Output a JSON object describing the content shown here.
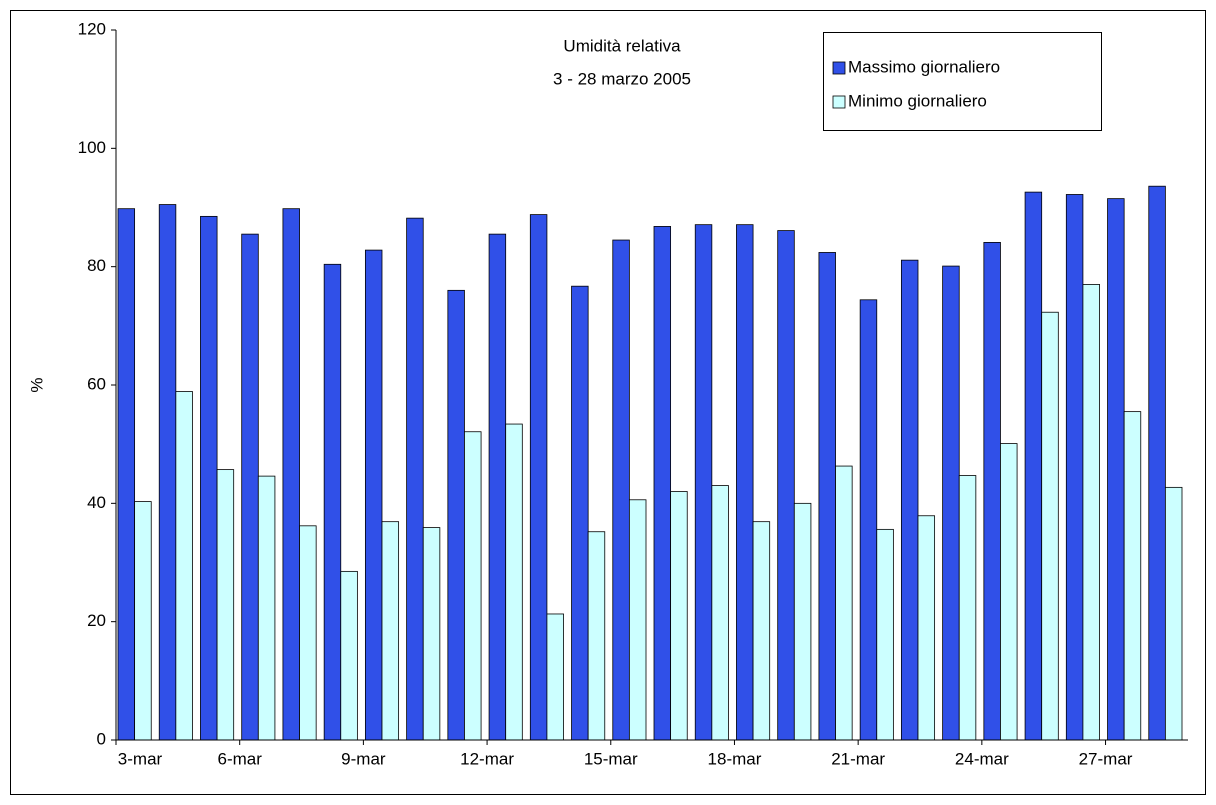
{
  "chart_data": {
    "type": "bar",
    "title": "Umidità relativa",
    "subtitle": "3 - 28 marzo 2005",
    "y_label": "%",
    "categories": [
      "3-mar",
      null,
      null,
      "6-mar",
      null,
      null,
      "9-mar",
      null,
      null,
      "12-mar",
      null,
      null,
      "15-mar",
      null,
      null,
      "18-mar",
      null,
      null,
      "21-mar",
      null,
      null,
      "24-mar",
      null,
      null,
      "27-mar",
      null
    ],
    "series": [
      {
        "name": "Massimo giornaliero",
        "color": "#3050e8",
        "values": [
          89.8,
          90.5,
          88.5,
          85.5,
          89.8,
          80.4,
          82.8,
          88.2,
          76.0,
          85.5,
          88.8,
          76.7,
          84.5,
          86.8,
          87.1,
          87.1,
          86.1,
          82.4,
          74.4,
          81.1,
          80.1,
          84.1,
          92.6,
          92.2,
          91.5,
          93.6
        ]
      },
      {
        "name": "Minimo giornaliero",
        "color": "#ccffff",
        "values": [
          40.3,
          58.9,
          45.7,
          44.6,
          36.2,
          28.5,
          36.9,
          35.9,
          52.1,
          53.4,
          21.3,
          35.2,
          40.6,
          42.0,
          43.0,
          36.9,
          40.0,
          46.3,
          35.6,
          37.9,
          44.7,
          50.1,
          72.3,
          77.0,
          55.5,
          42.7
        ]
      }
    ],
    "ylim": [
      0,
      120
    ],
    "yticks": [
      0,
      20,
      40,
      60,
      80,
      100,
      120
    ],
    "grid": false,
    "legend": "top-right"
  }
}
